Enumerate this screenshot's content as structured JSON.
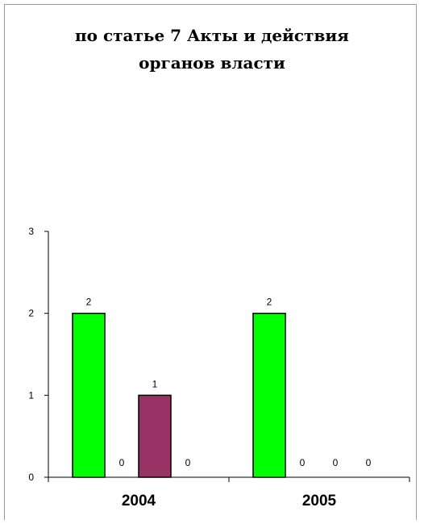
{
  "title_line1": "по статье 7 Акты и действия",
  "title_line2": "органов власти",
  "chart_data": {
    "type": "bar",
    "title": "по статье 7 Акты и действия органов власти",
    "categories": [
      "2004",
      "2005"
    ],
    "series": [
      {
        "values": [
          2,
          2
        ],
        "color": "#00ff00"
      },
      {
        "values": [
          0,
          0
        ],
        "color": "#00ff00"
      },
      {
        "values": [
          1,
          0
        ],
        "color": "#993366"
      },
      {
        "values": [
          0,
          0
        ],
        "color": "#993366"
      }
    ],
    "ylim": [
      0,
      3
    ],
    "yticks": [
      "0",
      "1",
      "2",
      "3"
    ],
    "grid": false,
    "legend": "none"
  }
}
